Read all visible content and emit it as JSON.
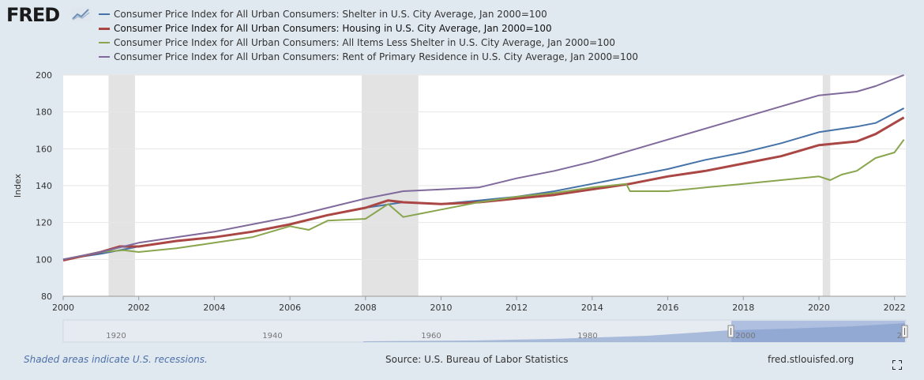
{
  "header": {
    "logo_text": "FRED",
    "logo_icon": "chart-line-icon"
  },
  "legend": [
    {
      "label": "Consumer Price Index for All Urban Consumers: Shelter in U.S. City Average, Jan 2000=100",
      "color": "#4572a7"
    },
    {
      "label": "Consumer Price Index for All Urban Consumers: Housing in U.S. City Average, Jan 2000=100",
      "color": "#aa4643"
    },
    {
      "label": "Consumer Price Index for All Urban Consumers: All Items Less Shelter in U.S. City Average, Jan 2000=100",
      "color": "#89a54e"
    },
    {
      "label": "Consumer Price Index for All Urban Consumers: Rent of Primary Residence in U.S. City Average, Jan 2000=100",
      "color": "#80699b"
    }
  ],
  "chart_data": {
    "type": "line",
    "ylabel": "Index",
    "ylim": [
      80,
      200
    ],
    "yticks": [
      "80",
      "100",
      "120",
      "140",
      "160",
      "180",
      "200"
    ],
    "xlim": [
      2000,
      2022.3
    ],
    "xticks": [
      "2000",
      "2002",
      "2004",
      "2006",
      "2008",
      "2010",
      "2012",
      "2014",
      "2016",
      "2018",
      "2020",
      "2022"
    ],
    "grid": true,
    "recessions": [
      [
        2001.2,
        2001.9
      ],
      [
        2007.9,
        2009.4
      ],
      [
        2020.1,
        2020.3
      ]
    ],
    "series": [
      {
        "name": "Consumer Price Index for All Urban Consumers: Shelter in U.S. City Average, Jan 2000=100",
        "color": "#4572a7",
        "x": [
          2000,
          2001,
          2002,
          2003,
          2004,
          2005,
          2006,
          2007,
          2008,
          2009,
          2010,
          2011,
          2012,
          2013,
          2014,
          2015,
          2016,
          2017,
          2018,
          2019,
          2020,
          2021,
          2021.5,
          2022.25
        ],
        "y": [
          100,
          103,
          107,
          110,
          112,
          115,
          119,
          124,
          128,
          131,
          130,
          132,
          134,
          137,
          141,
          145,
          149,
          154,
          158,
          163,
          169,
          172,
          174,
          182
        ]
      },
      {
        "name": "Consumer Price Index for All Urban Consumers: Housing in U.S. City Average, Jan 2000=100",
        "color": "#aa4643",
        "x": [
          2000,
          2001,
          2001.5,
          2002,
          2003,
          2004,
          2005,
          2006,
          2007,
          2008,
          2008.6,
          2009,
          2010,
          2011,
          2012,
          2013,
          2014,
          2015,
          2016,
          2017,
          2018,
          2019,
          2020,
          2021,
          2021.5,
          2022.25
        ],
        "y": [
          99.5,
          104,
          107,
          107,
          110,
          112,
          115,
          119,
          124,
          128,
          132,
          131,
          130,
          131,
          133,
          135,
          138,
          141,
          145,
          148,
          152,
          156,
          162,
          164,
          168,
          177
        ]
      },
      {
        "name": "Consumer Price Index for All Urban Consumers: All Items Less Shelter in U.S. City Average, Jan 2000=100",
        "color": "#89a54e",
        "x": [
          2000,
          2001,
          2001.6,
          2002,
          2003,
          2004,
          2005,
          2005.5,
          2006,
          2006.5,
          2007,
          2008,
          2008.6,
          2009,
          2009.5,
          2010,
          2011,
          2012,
          2013,
          2014,
          2014.9,
          2015,
          2016,
          2017,
          2018,
          2019,
          2020,
          2020.3,
          2020.6,
          2021,
          2021.5,
          2022,
          2022.25
        ],
        "y": [
          100,
          104,
          105,
          104,
          106,
          109,
          112,
          115,
          118,
          116,
          121,
          122,
          130,
          123,
          125,
          127,
          131,
          134,
          136,
          139,
          141,
          137,
          137,
          139,
          141,
          143,
          145,
          143,
          146,
          148,
          155,
          158,
          165
        ]
      },
      {
        "name": "Consumer Price Index for All Urban Consumers: Rent of Primary Residence in U.S. City Average, Jan 2000=100",
        "color": "#80699b",
        "x": [
          2000,
          2001,
          2002,
          2003,
          2004,
          2005,
          2006,
          2007,
          2008,
          2009,
          2010,
          2011,
          2012,
          2013,
          2014,
          2015,
          2016,
          2017,
          2018,
          2019,
          2020,
          2021,
          2021.5,
          2022.25
        ],
        "y": [
          100,
          104,
          109,
          112,
          115,
          119,
          123,
          128,
          133,
          137,
          138,
          139,
          144,
          148,
          153,
          159,
          165,
          171,
          177,
          183,
          189,
          191,
          194,
          200
        ]
      }
    ]
  },
  "navigator": {
    "ticks": [
      "1920",
      "1940",
      "1960",
      "1980",
      "2000",
      "20"
    ]
  },
  "footer": {
    "recession_note": "Shaded areas indicate U.S. recessions.",
    "source": "Source: U.S. Bureau of Labor Statistics",
    "site": "fred.stlouisfed.org",
    "fullscreen_icon": "fullscreen-icon"
  }
}
